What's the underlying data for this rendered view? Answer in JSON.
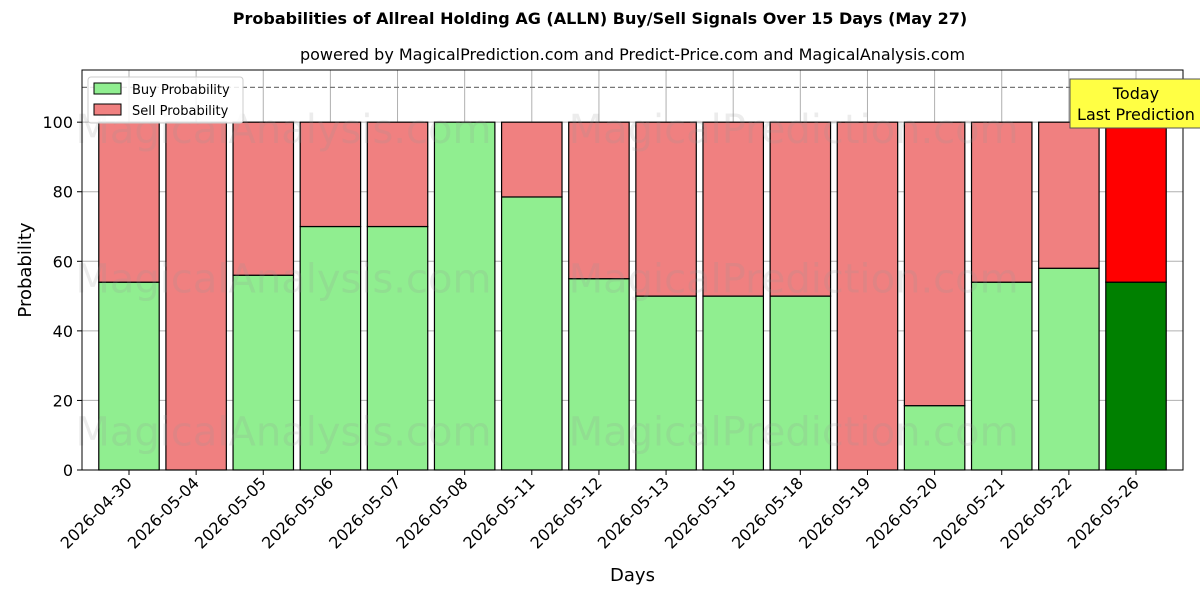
{
  "chart_data": {
    "type": "bar",
    "title": "Probabilities of Allreal Holding AG (ALLN) Buy/Sell Signals Over 15 Days (May 27)",
    "subtitle": "powered by MagicalPrediction.com and Predict-Price.com and MagicalAnalysis.com",
    "xlabel": "Days",
    "ylabel": "Probability",
    "ylim": [
      0,
      115
    ],
    "yticks": [
      0,
      20,
      40,
      60,
      80,
      100
    ],
    "categories": [
      "2026-04-30",
      "2026-05-04",
      "2026-05-05",
      "2026-05-06",
      "2026-05-07",
      "2026-05-08",
      "2026-05-11",
      "2026-05-12",
      "2026-05-13",
      "2026-05-15",
      "2026-05-18",
      "2026-05-19",
      "2026-05-20",
      "2026-05-21",
      "2026-05-22",
      "2026-05-26"
    ],
    "series": [
      {
        "name": "Buy Probability",
        "values": [
          54,
          0,
          56,
          70,
          70,
          100,
          78.5,
          55,
          50,
          50,
          50,
          0,
          18.5,
          54,
          58,
          54
        ]
      },
      {
        "name": "Sell Probability",
        "values": [
          46,
          100,
          44,
          30,
          30,
          0,
          21.5,
          45,
          50,
          50,
          50,
          100,
          81.5,
          46,
          42,
          46
        ]
      }
    ],
    "stacked": true,
    "reference_line": {
      "y": 110,
      "style": "dashed"
    },
    "annotation": {
      "text_lines": [
        "Today",
        "Last Prediction"
      ],
      "category": "2026-05-26"
    },
    "legend_position": "top-left",
    "grid": true,
    "watermarks": [
      "MagicalAnalysis.com",
      "MagicalPrediction.com"
    ],
    "colors": {
      "buy": "#90EE90",
      "sell": "#F08080",
      "buy_last": "#008000",
      "sell_last": "#FF0000",
      "annotation_bg": "#FFFF44"
    }
  }
}
